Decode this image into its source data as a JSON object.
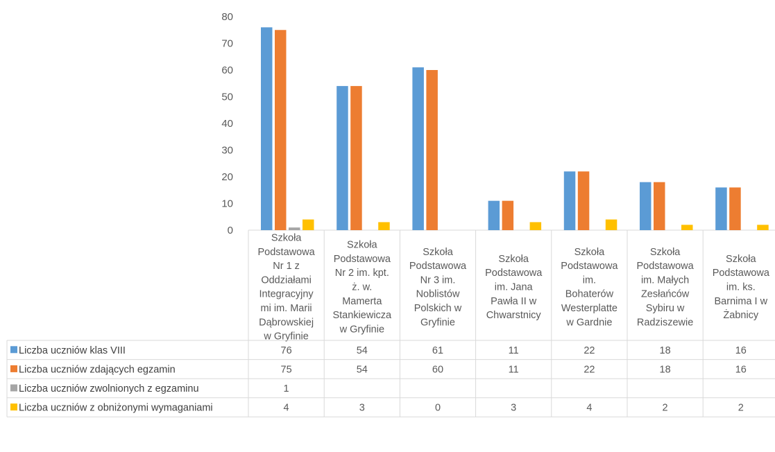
{
  "chart_data": {
    "type": "bar",
    "ylim": [
      0,
      80
    ],
    "yticks": [
      0,
      10,
      20,
      30,
      40,
      50,
      60,
      70,
      80
    ],
    "grid": false,
    "legend": "table",
    "categories": [
      [
        "Szkoła",
        "Podstawowa",
        "Nr 1 z",
        "Oddziałami",
        "Integracyjny",
        "mi im. Marii",
        "Dąbrowskiej",
        "w Gryfinie"
      ],
      [
        "Szkoła",
        "Podstawowa",
        "Nr 2 im. kpt.",
        "ż. w.",
        "Mamerta",
        "Stankiewicza",
        "w Gryfinie"
      ],
      [
        "Szkoła",
        "Podstawowa",
        "Nr 3 im.",
        "Noblistów",
        "Polskich w",
        "Gryfinie"
      ],
      [
        "Szkoła",
        "Podstawowa",
        "im. Jana",
        "Pawła II w",
        "Chwarstnicy"
      ],
      [
        "Szkoła",
        "Podstawowa",
        "im.",
        "Bohaterów",
        "Westerplatte",
        "w Gardnie"
      ],
      [
        "Szkoła",
        "Podstawowa",
        "im. Małych",
        "Zesłańców",
        "Sybiru w",
        "Radziszewie"
      ],
      [
        "Szkoła",
        "Podstawowa",
        "im. ks.",
        "Barnima I w",
        "Żabnicy"
      ]
    ],
    "series": [
      {
        "name": "Liczba uczniów klas VIII",
        "color": "#5B9BD5",
        "values": [
          76,
          54,
          61,
          11,
          22,
          18,
          16
        ]
      },
      {
        "name": "Liczba uczniów zdających egzamin",
        "color": "#ED7D31",
        "values": [
          75,
          54,
          60,
          11,
          22,
          18,
          16
        ]
      },
      {
        "name": "Liczba uczniów zwolnionych z egzaminu",
        "color": "#A5A5A5",
        "values": [
          1,
          null,
          null,
          null,
          null,
          null,
          null
        ]
      },
      {
        "name": "Liczba uczniów z obniżonymi wymaganiami",
        "color": "#FFC000",
        "values": [
          4,
          3,
          0,
          3,
          4,
          2,
          2
        ]
      }
    ]
  }
}
